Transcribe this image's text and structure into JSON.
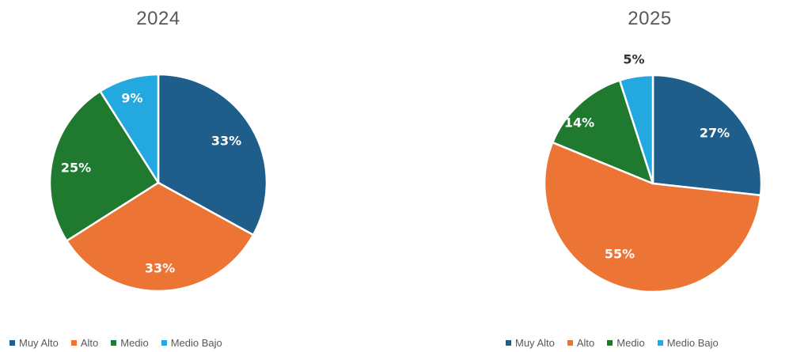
{
  "chart_data": [
    {
      "type": "pie",
      "title": "2024",
      "categories": [
        "Muy Alto",
        "Alto",
        "Medio",
        "Medio Bajo"
      ],
      "values": [
        33,
        33,
        25,
        9
      ],
      "labels": [
        "33%",
        "33%",
        "25%",
        "9%"
      ],
      "colors": [
        "#1f5d8a",
        "#ec7434",
        "#1f7a30",
        "#23a8e0"
      ],
      "label_colors": [
        "#ffffff",
        "#ffffff",
        "#ffffff",
        "#ffffff"
      ],
      "legend": "bottom"
    },
    {
      "type": "pie",
      "title": "2025",
      "categories": [
        "Muy Alto",
        "Alto",
        "Medio",
        "Medio Bajo"
      ],
      "values": [
        27,
        55,
        14,
        5
      ],
      "labels": [
        "27%",
        "55%",
        "14%",
        "5%"
      ],
      "colors": [
        "#1f5d8a",
        "#ec7434",
        "#1f7a30",
        "#23a8e0"
      ],
      "label_colors": [
        "#ffffff",
        "#ffffff",
        "#ffffff",
        "#333333"
      ],
      "legend": "bottom"
    }
  ]
}
